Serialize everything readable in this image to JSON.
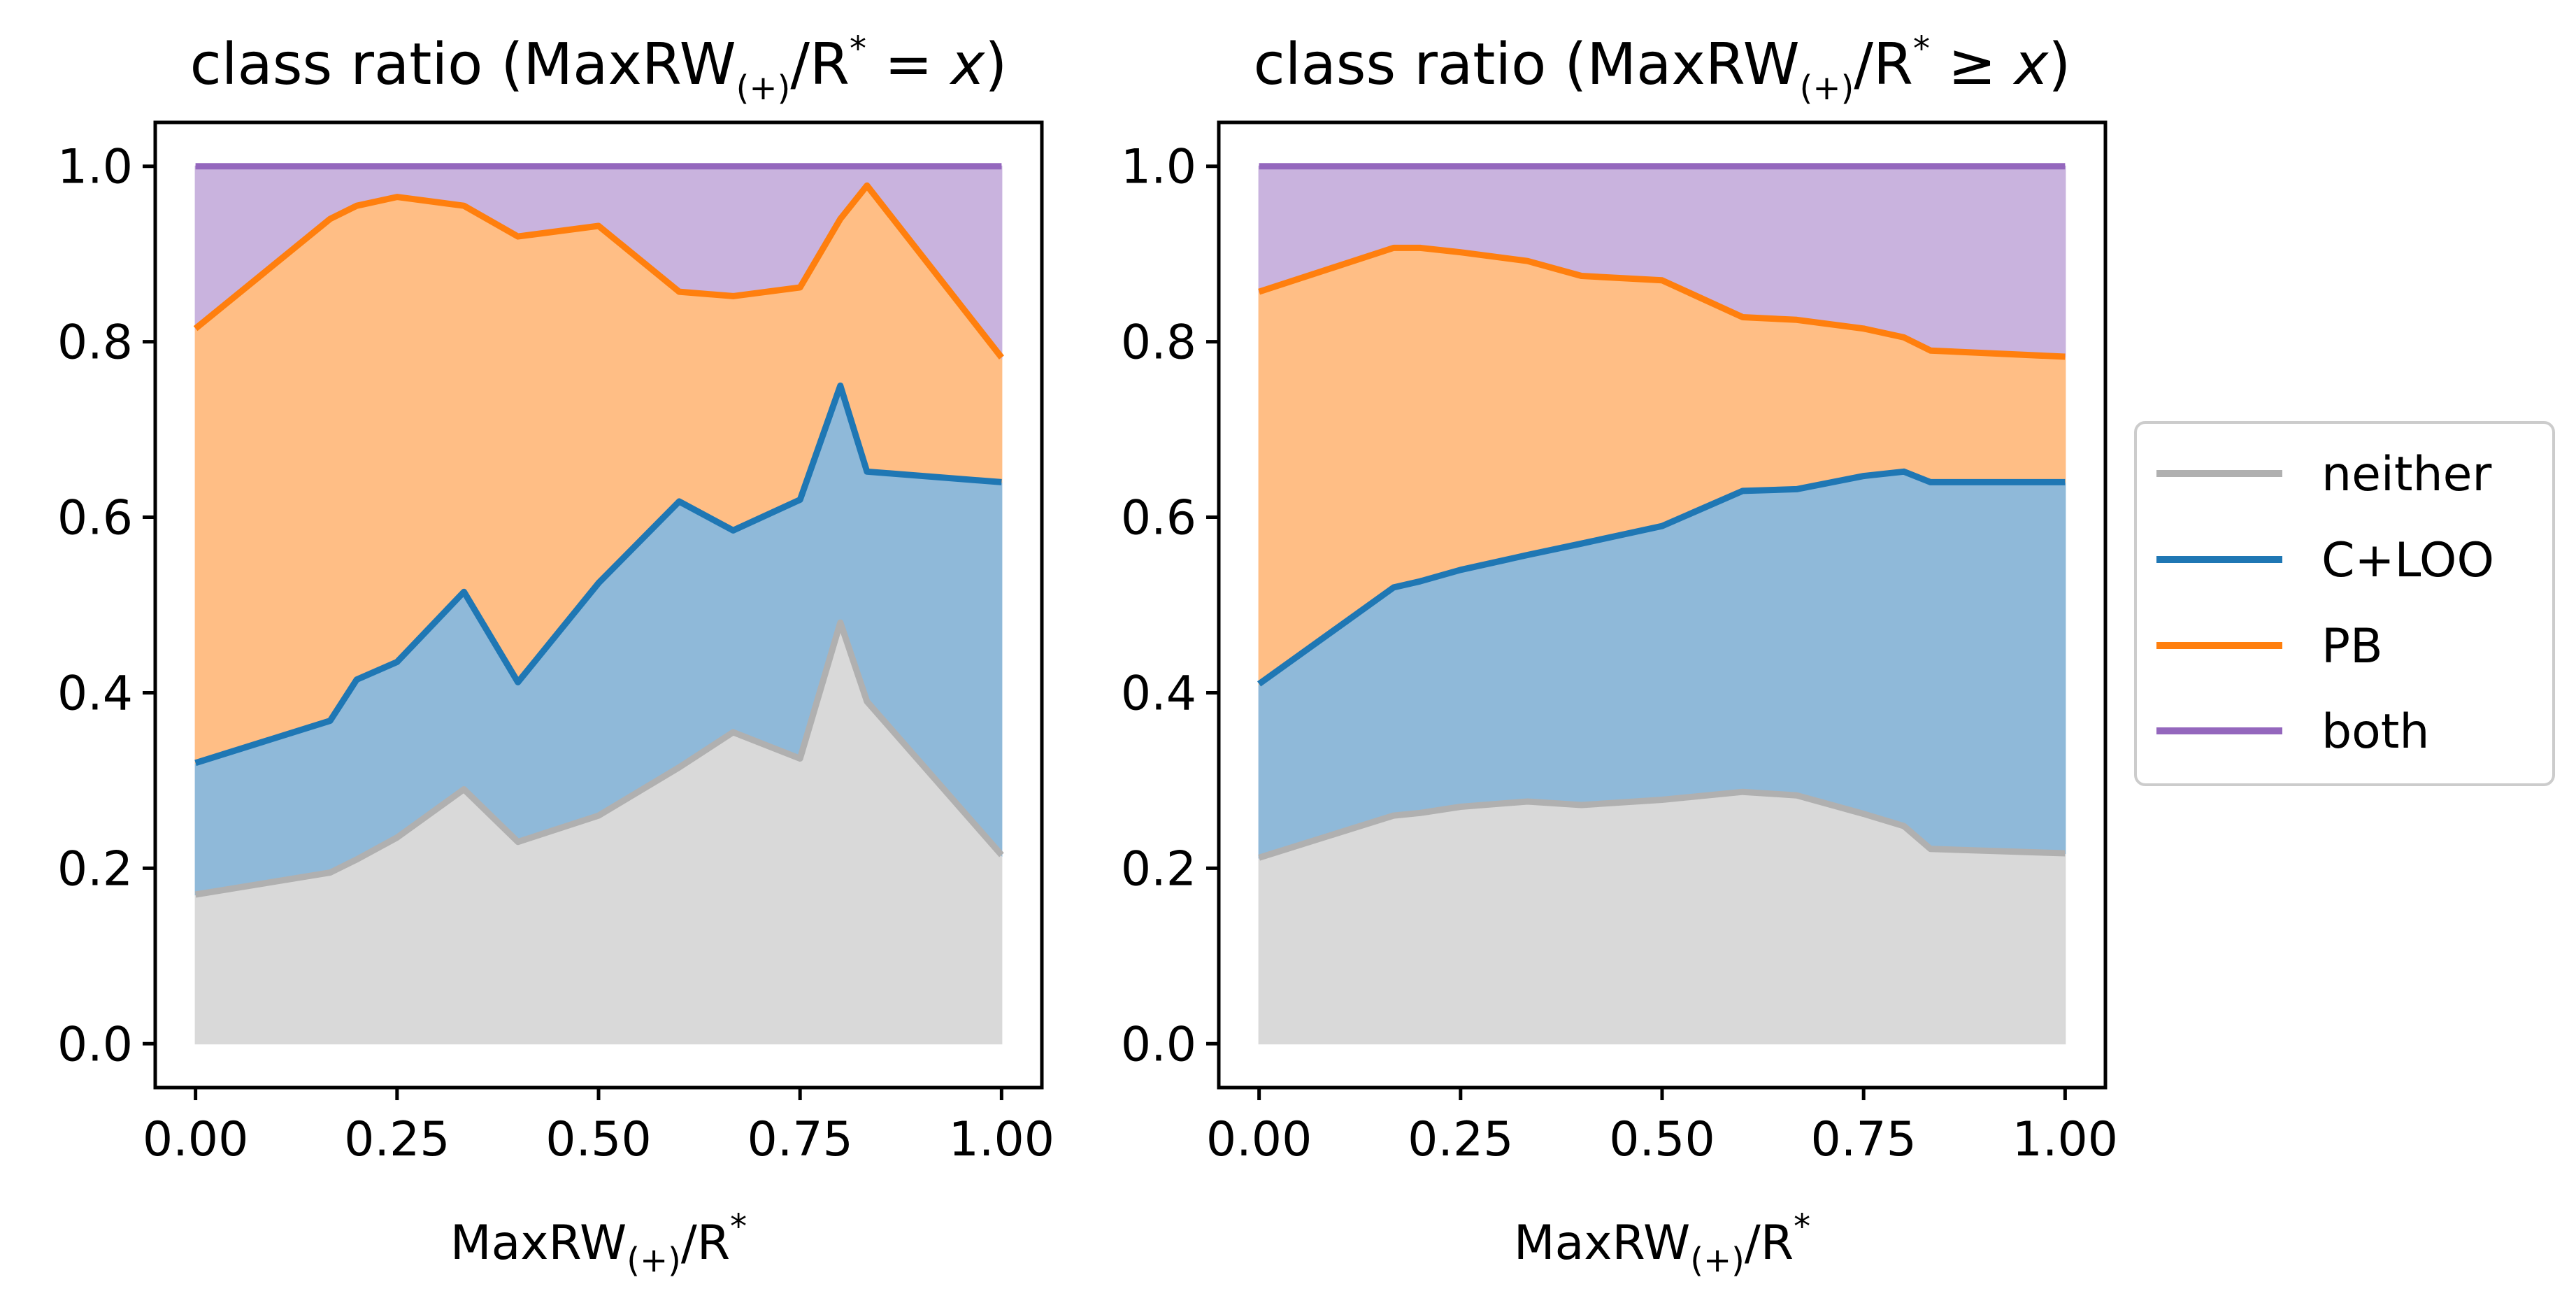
{
  "chart_data": [
    {
      "type": "area",
      "stacked": true,
      "title": {
        "pre": "class ratio (MaxRW",
        "sub": "(+)",
        "mid": "/R",
        "sup": "*",
        "rel": " = ",
        "var": "x",
        "post": ")"
      },
      "xlabel": {
        "pre": "MaxRW",
        "sub": "(+)",
        "mid": "/R",
        "sup": "*"
      },
      "ylabel": "",
      "xlim": [
        -0.05,
        1.05
      ],
      "ylim": [
        -0.05,
        1.05
      ],
      "xticks": [
        "0.00",
        "0.25",
        "0.50",
        "0.75",
        "1.00"
      ],
      "yticks": [
        "0.0",
        "0.2",
        "0.4",
        "0.6",
        "0.8",
        "1.0"
      ],
      "grid": false,
      "x": [
        0.0,
        0.167,
        0.2,
        0.25,
        0.333,
        0.4,
        0.5,
        0.6,
        0.667,
        0.75,
        0.8,
        0.833,
        1.0
      ],
      "series": [
        {
          "name": "neither",
          "values": [
            0.17,
            0.195,
            0.21,
            0.235,
            0.29,
            0.23,
            0.26,
            0.315,
            0.355,
            0.325,
            0.48,
            0.39,
            0.215
          ]
        },
        {
          "name": "C+LOO",
          "values": [
            0.32,
            0.368,
            0.415,
            0.435,
            0.515,
            0.412,
            0.525,
            0.618,
            0.585,
            0.62,
            0.75,
            0.652,
            0.64
          ]
        },
        {
          "name": "PB",
          "values": [
            0.815,
            0.94,
            0.955,
            0.965,
            0.955,
            0.92,
            0.932,
            0.857,
            0.852,
            0.862,
            0.94,
            0.978,
            0.782
          ]
        },
        {
          "name": "both",
          "values": [
            1.0,
            1.0,
            1.0,
            1.0,
            1.0,
            1.0,
            1.0,
            1.0,
            1.0,
            1.0,
            1.0,
            1.0,
            1.0
          ]
        }
      ]
    },
    {
      "type": "area",
      "stacked": true,
      "title": {
        "pre": "class ratio (MaxRW",
        "sub": "(+)",
        "mid": "/R",
        "sup": "*",
        "rel": " ≥ ",
        "var": "x",
        "post": ")"
      },
      "xlabel": {
        "pre": "MaxRW",
        "sub": "(+)",
        "mid": "/R",
        "sup": "*"
      },
      "ylabel": "",
      "xlim": [
        -0.05,
        1.05
      ],
      "ylim": [
        -0.05,
        1.05
      ],
      "xticks": [
        "0.00",
        "0.25",
        "0.50",
        "0.75",
        "1.00"
      ],
      "yticks": [
        "0.0",
        "0.2",
        "0.4",
        "0.6",
        "0.8",
        "1.0"
      ],
      "grid": false,
      "x": [
        0.0,
        0.167,
        0.2,
        0.25,
        0.333,
        0.4,
        0.5,
        0.6,
        0.667,
        0.75,
        0.8,
        0.833,
        1.0
      ],
      "series": [
        {
          "name": "neither",
          "values": [
            0.212,
            0.26,
            0.263,
            0.27,
            0.276,
            0.272,
            0.278,
            0.287,
            0.283,
            0.262,
            0.248,
            0.222,
            0.217
          ]
        },
        {
          "name": "C+LOO",
          "values": [
            0.41,
            0.52,
            0.527,
            0.54,
            0.557,
            0.57,
            0.59,
            0.63,
            0.632,
            0.647,
            0.652,
            0.64,
            0.64
          ]
        },
        {
          "name": "PB",
          "values": [
            0.857,
            0.907,
            0.907,
            0.902,
            0.892,
            0.875,
            0.87,
            0.828,
            0.825,
            0.815,
            0.805,
            0.79,
            0.783
          ]
        },
        {
          "name": "both",
          "values": [
            1.0,
            1.0,
            1.0,
            1.0,
            1.0,
            1.0,
            1.0,
            1.0,
            1.0,
            1.0,
            1.0,
            1.0,
            1.0
          ]
        }
      ]
    }
  ],
  "legend": {
    "placement": "right",
    "entries": [
      "neither",
      "C+LOO",
      "PB",
      "both"
    ]
  },
  "colors": {
    "neither": {
      "line": "#b0b0b0",
      "fill": "#d9d9d9"
    },
    "C+LOO": {
      "line": "#1f77b4",
      "fill": "#8fb9d9"
    },
    "PB": {
      "line": "#ff7f0e",
      "fill": "#ffbe85"
    },
    "both": {
      "line": "#9467bd",
      "fill": "#c9b3de"
    }
  }
}
